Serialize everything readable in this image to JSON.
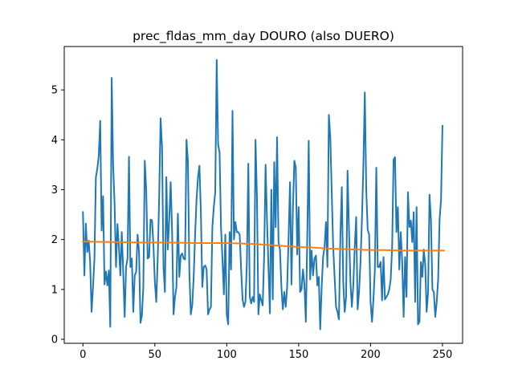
{
  "chart_data": {
    "type": "line",
    "title": "prec_fldas_mm_day DOURO (also DUERO)",
    "xlabel": "",
    "ylabel": "",
    "xlim": [
      -13,
      264
    ],
    "ylim": [
      -0.08,
      5.87
    ],
    "grid": false,
    "xticks": [
      0,
      50,
      100,
      150,
      200,
      250
    ],
    "yticks": [
      0,
      1,
      2,
      3,
      4,
      5
    ],
    "series": [
      {
        "color": "#1f77b4",
        "values": [
          2.55,
          1.28,
          2.32,
          1.75,
          1.98,
          1.55,
          0.55,
          1.05,
          1.62,
          3.25,
          3.42,
          3.68,
          4.38,
          2.18,
          2.87,
          1.1,
          1.36,
          1.08,
          1.38,
          0.25,
          5.24,
          3.48,
          2.72,
          1.45,
          2.31,
          1.85,
          1.28,
          2.15,
          1.35,
          0.45,
          1.45,
          1.62,
          3.66,
          1.45,
          1.62,
          0.55,
          1.28,
          1.35,
          2.1,
          1.75,
          0.33,
          0.48,
          1.05,
          3.58,
          3.0,
          1.62,
          1.65,
          2.4,
          2.39,
          1.9,
          1.15,
          0.75,
          1.62,
          2.85,
          4.43,
          3.85,
          1.45,
          0.95,
          3.25,
          1.8,
          2.4,
          3.15,
          2.15,
          0.5,
          0.85,
          1.05,
          2.52,
          1.25,
          1.68,
          1.72,
          1.62,
          1.6,
          4.0,
          3.58,
          1.35,
          0.5,
          0.68,
          1.25,
          2.1,
          2.8,
          3.25,
          3.48,
          2.55,
          1.05,
          1.45,
          1.48,
          1.4,
          0.5,
          0.6,
          0.65,
          2.25,
          2.65,
          2.95,
          5.6,
          3.9,
          3.75,
          2.25,
          1.62,
          0.9,
          2.1,
          0.5,
          0.3,
          2.15,
          1.4,
          4.58,
          2.0,
          2.35,
          2.15,
          2.15,
          2.1,
          1.4,
          0.8,
          0.65,
          0.75,
          1.55,
          3.52,
          0.85,
          0.72,
          0.85,
          0.75,
          4.0,
          2.85,
          0.5,
          0.9,
          0.78,
          0.68,
          1.68,
          3.5,
          2.38,
          1.45,
          0.52,
          3.0,
          0.8,
          3.55,
          2.25,
          4.05,
          1.95,
          1.8,
          1.05,
          0.6,
          0.95,
          0.65,
          1.05,
          2.05,
          3.15,
          1.1,
          2.6,
          3.58,
          3.45,
          1.7,
          2.65,
          0.95,
          1.0,
          1.4,
          1.1,
          0.35,
          2.05,
          3.98,
          1.2,
          1.78,
          1.28,
          1.62,
          1.68,
          1.08,
          1.25,
          0.2,
          1.05,
          1.65,
          1.85,
          2.35,
          1.45,
          4.5,
          4.05,
          2.95,
          1.85,
          1.25,
          0.65,
          0.55,
          0.4,
          2.05,
          3.05,
          1.15,
          0.55,
          0.85,
          3.38,
          2.2,
          1.15,
          0.65,
          1.08,
          1.85,
          2.45,
          0.6,
          0.95,
          1.55,
          2.4,
          3.48,
          4.95,
          3.0,
          2.2,
          2.1,
          0.75,
          0.35,
          0.8,
          1.4,
          3.44,
          1.45,
          1.45,
          1.55,
          0.78,
          1.65,
          0.8,
          0.85,
          0.9,
          1.0,
          1.2,
          1.85,
          3.6,
          3.65,
          2.15,
          2.65,
          1.4,
          2.15,
          1.55,
          0.45,
          1.65,
          0.85,
          2.95,
          2.25,
          2.38,
          1.95,
          2.55,
          0.75,
          2.65,
          0.3,
          0.35,
          1.55,
          1.25,
          1.8,
          1.5,
          0.55,
          0.95,
          2.9,
          2.4,
          1.0,
          0.95,
          0.45,
          0.75,
          1.2,
          2.4,
          2.8,
          4.28
        ]
      },
      {
        "color": "#ff7f0e",
        "values_at": {
          "x": [
            0,
            20,
            40,
            60,
            80,
            100,
            110,
            120,
            130,
            140,
            150,
            160,
            170,
            180,
            190,
            200,
            210,
            220,
            230,
            240,
            250,
            251
          ],
          "y": [
            1.96,
            1.95,
            1.94,
            1.94,
            1.93,
            1.93,
            1.92,
            1.91,
            1.89,
            1.87,
            1.85,
            1.84,
            1.82,
            1.81,
            1.8,
            1.79,
            1.79,
            1.78,
            1.78,
            1.78,
            1.78,
            1.78
          ]
        }
      }
    ]
  }
}
